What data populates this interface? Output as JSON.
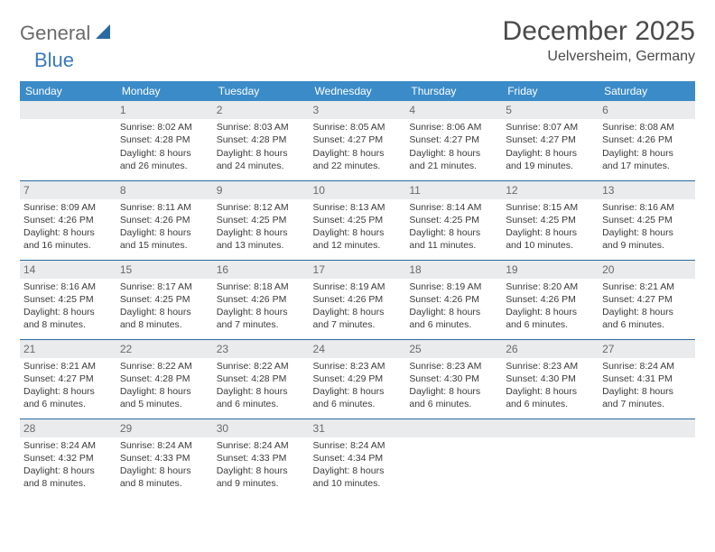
{
  "logo": {
    "word1": "General",
    "word2": "Blue",
    "word1_color": "#6b6b6b",
    "word2_color": "#3a7abf",
    "icon_color": "#2a6aa0"
  },
  "title": "December 2025",
  "location": "Uelversheim, Germany",
  "colors": {
    "header_bg": "#3b8bc8",
    "header_text": "#ffffff",
    "daynum_bg": "#e9ebec",
    "daynum_text": "#6a6a6a",
    "body_text": "#3a3a3a",
    "row_divider": "#2a6aa0"
  },
  "day_headers": [
    "Sunday",
    "Monday",
    "Tuesday",
    "Wednesday",
    "Thursday",
    "Friday",
    "Saturday"
  ],
  "weeks": [
    [
      null,
      {
        "n": "1",
        "sunrise": "8:02 AM",
        "sunset": "4:28 PM",
        "daylight": "8 hours and 26 minutes."
      },
      {
        "n": "2",
        "sunrise": "8:03 AM",
        "sunset": "4:28 PM",
        "daylight": "8 hours and 24 minutes."
      },
      {
        "n": "3",
        "sunrise": "8:05 AM",
        "sunset": "4:27 PM",
        "daylight": "8 hours and 22 minutes."
      },
      {
        "n": "4",
        "sunrise": "8:06 AM",
        "sunset": "4:27 PM",
        "daylight": "8 hours and 21 minutes."
      },
      {
        "n": "5",
        "sunrise": "8:07 AM",
        "sunset": "4:27 PM",
        "daylight": "8 hours and 19 minutes."
      },
      {
        "n": "6",
        "sunrise": "8:08 AM",
        "sunset": "4:26 PM",
        "daylight": "8 hours and 17 minutes."
      }
    ],
    [
      {
        "n": "7",
        "sunrise": "8:09 AM",
        "sunset": "4:26 PM",
        "daylight": "8 hours and 16 minutes."
      },
      {
        "n": "8",
        "sunrise": "8:11 AM",
        "sunset": "4:26 PM",
        "daylight": "8 hours and 15 minutes."
      },
      {
        "n": "9",
        "sunrise": "8:12 AM",
        "sunset": "4:25 PM",
        "daylight": "8 hours and 13 minutes."
      },
      {
        "n": "10",
        "sunrise": "8:13 AM",
        "sunset": "4:25 PM",
        "daylight": "8 hours and 12 minutes."
      },
      {
        "n": "11",
        "sunrise": "8:14 AM",
        "sunset": "4:25 PM",
        "daylight": "8 hours and 11 minutes."
      },
      {
        "n": "12",
        "sunrise": "8:15 AM",
        "sunset": "4:25 PM",
        "daylight": "8 hours and 10 minutes."
      },
      {
        "n": "13",
        "sunrise": "8:16 AM",
        "sunset": "4:25 PM",
        "daylight": "8 hours and 9 minutes."
      }
    ],
    [
      {
        "n": "14",
        "sunrise": "8:16 AM",
        "sunset": "4:25 PM",
        "daylight": "8 hours and 8 minutes."
      },
      {
        "n": "15",
        "sunrise": "8:17 AM",
        "sunset": "4:25 PM",
        "daylight": "8 hours and 8 minutes."
      },
      {
        "n": "16",
        "sunrise": "8:18 AM",
        "sunset": "4:26 PM",
        "daylight": "8 hours and 7 minutes."
      },
      {
        "n": "17",
        "sunrise": "8:19 AM",
        "sunset": "4:26 PM",
        "daylight": "8 hours and 7 minutes."
      },
      {
        "n": "18",
        "sunrise": "8:19 AM",
        "sunset": "4:26 PM",
        "daylight": "8 hours and 6 minutes."
      },
      {
        "n": "19",
        "sunrise": "8:20 AM",
        "sunset": "4:26 PM",
        "daylight": "8 hours and 6 minutes."
      },
      {
        "n": "20",
        "sunrise": "8:21 AM",
        "sunset": "4:27 PM",
        "daylight": "8 hours and 6 minutes."
      }
    ],
    [
      {
        "n": "21",
        "sunrise": "8:21 AM",
        "sunset": "4:27 PM",
        "daylight": "8 hours and 6 minutes."
      },
      {
        "n": "22",
        "sunrise": "8:22 AM",
        "sunset": "4:28 PM",
        "daylight": "8 hours and 5 minutes."
      },
      {
        "n": "23",
        "sunrise": "8:22 AM",
        "sunset": "4:28 PM",
        "daylight": "8 hours and 6 minutes."
      },
      {
        "n": "24",
        "sunrise": "8:23 AM",
        "sunset": "4:29 PM",
        "daylight": "8 hours and 6 minutes."
      },
      {
        "n": "25",
        "sunrise": "8:23 AM",
        "sunset": "4:30 PM",
        "daylight": "8 hours and 6 minutes."
      },
      {
        "n": "26",
        "sunrise": "8:23 AM",
        "sunset": "4:30 PM",
        "daylight": "8 hours and 6 minutes."
      },
      {
        "n": "27",
        "sunrise": "8:24 AM",
        "sunset": "4:31 PM",
        "daylight": "8 hours and 7 minutes."
      }
    ],
    [
      {
        "n": "28",
        "sunrise": "8:24 AM",
        "sunset": "4:32 PM",
        "daylight": "8 hours and 8 minutes."
      },
      {
        "n": "29",
        "sunrise": "8:24 AM",
        "sunset": "4:33 PM",
        "daylight": "8 hours and 8 minutes."
      },
      {
        "n": "30",
        "sunrise": "8:24 AM",
        "sunset": "4:33 PM",
        "daylight": "8 hours and 9 minutes."
      },
      {
        "n": "31",
        "sunrise": "8:24 AM",
        "sunset": "4:34 PM",
        "daylight": "8 hours and 10 minutes."
      },
      null,
      null,
      null
    ]
  ],
  "labels": {
    "sunrise": "Sunrise:",
    "sunset": "Sunset:",
    "daylight": "Daylight:"
  }
}
